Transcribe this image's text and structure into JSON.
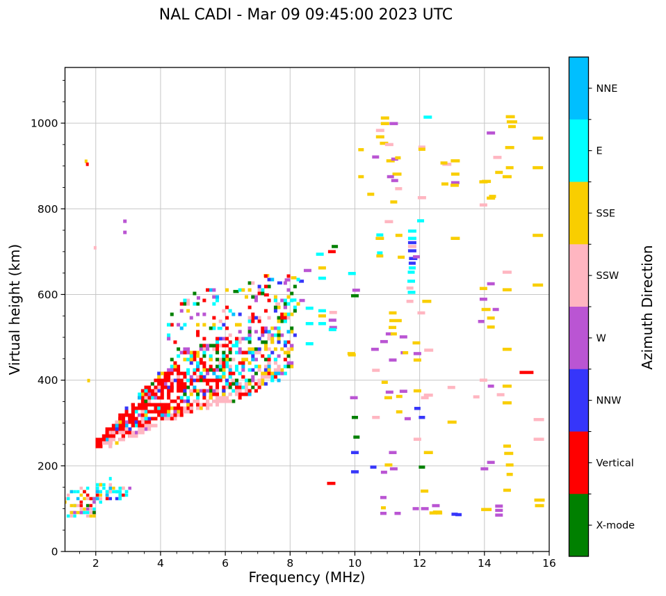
{
  "title": "NAL CADI - Mar 09 09:45:00 2023 UTC",
  "chart_data": {
    "type": "scatter",
    "title": "NAL CADI - Mar 09 09:45:00 2023 UTC",
    "xlabel": "Frequency (MHz)",
    "ylabel": "Virtual height (km)",
    "xlim": [
      1.05,
      16
    ],
    "ylim": [
      0,
      1130
    ],
    "x_ticks": [
      2,
      4,
      6,
      8,
      10,
      12,
      14,
      16
    ],
    "y_ticks": [
      0,
      200,
      400,
      600,
      800,
      1000
    ],
    "x_minor_step": 0.5,
    "y_minor_step": 50,
    "grid": true,
    "grid_color": "#c6c6c6",
    "axis_color": "#000000",
    "seed": 7,
    "colorbar": {
      "label": "Azimuth Direction",
      "categories": [
        {
          "name": "NNE",
          "color": "#00bfff"
        },
        {
          "name": "E",
          "color": "#00ffff"
        },
        {
          "name": "SSE",
          "color": "#f9ce00"
        },
        {
          "name": "SSW",
          "color": "#ffb6c1"
        },
        {
          "name": "W",
          "color": "#ba55d3"
        },
        {
          "name": "NNW",
          "color": "#3636fa"
        },
        {
          "name": "Vertical",
          "color": "#ff0000"
        },
        {
          "name": "X-mode",
          "color": "#008000"
        }
      ]
    },
    "points_format": [
      "freq_MHz",
      "virtual_height_km",
      "category_index",
      "dash_width_px"
    ],
    "points": [
      [
        1.7,
        911,
        2,
        4
      ],
      [
        1.74,
        904,
        6,
        4
      ],
      [
        2.9,
        771,
        4,
        5
      ],
      [
        2.9,
        745,
        4,
        5
      ],
      [
        1.98,
        709,
        3,
        4
      ],
      [
        1.78,
        399,
        2,
        4
      ],
      [
        2.45,
        170,
        1,
        4
      ],
      [
        5.17,
        592,
        4,
        5
      ],
      [
        5.83,
        521,
        1,
        7
      ],
      [
        6.33,
        607,
        7,
        8
      ],
      [
        7.27,
        599,
        6,
        7
      ],
      [
        7.62,
        578,
        3,
        7
      ],
      [
        7.27,
        644,
        2,
        8
      ],
      [
        7.92,
        634,
        4,
        8
      ],
      [
        8.11,
        639,
        2,
        8
      ],
      [
        7.68,
        627,
        5,
        7
      ],
      [
        8.35,
        631,
        5,
        7
      ],
      [
        8.11,
        587,
        1,
        8
      ],
      [
        8.37,
        586,
        4,
        8
      ],
      [
        8.54,
        656,
        4,
        11
      ],
      [
        8.99,
        662,
        2,
        11
      ],
      [
        9.91,
        649,
        1,
        11
      ],
      [
        8.99,
        638,
        1,
        11
      ],
      [
        8.92,
        694,
        1,
        11
      ],
      [
        9.29,
        700,
        6,
        11
      ],
      [
        9.38,
        712,
        7,
        9
      ],
      [
        8.6,
        568,
        1,
        11
      ],
      [
        8.99,
        562,
        1,
        11
      ],
      [
        9.33,
        558,
        3,
        11
      ],
      [
        8.99,
        550,
        2,
        11
      ],
      [
        9.31,
        540,
        4,
        11
      ],
      [
        8.6,
        532,
        1,
        11
      ],
      [
        8.99,
        532,
        1,
        11
      ],
      [
        9.33,
        523,
        4,
        11
      ],
      [
        9.31,
        518,
        1,
        11
      ],
      [
        8.6,
        485,
        1,
        11
      ],
      [
        9.91,
        459,
        2,
        11
      ],
      [
        9.27,
        159,
        6,
        12
      ],
      [
        10.19,
        938,
        2,
        8
      ],
      [
        10.19,
        875,
        2,
        8
      ],
      [
        10.49,
        834,
        2,
        10
      ],
      [
        10.93,
        1012,
        2,
        12
      ],
      [
        12.25,
        1014,
        1,
        12
      ],
      [
        10.93,
        999,
        2,
        12
      ],
      [
        11.2,
        999,
        4,
        12
      ],
      [
        10.78,
        983,
        3,
        12
      ],
      [
        10.78,
        968,
        2,
        12
      ],
      [
        10.9,
        953,
        2,
        12
      ],
      [
        11.06,
        950,
        3,
        12
      ],
      [
        10.64,
        921,
        4,
        10
      ],
      [
        11.1,
        912,
        2,
        12
      ],
      [
        11.23,
        916,
        4,
        10
      ],
      [
        11.33,
        919,
        2,
        8
      ],
      [
        12.07,
        944,
        3,
        10
      ],
      [
        12.07,
        939,
        2,
        10
      ],
      [
        12.84,
        904,
        3,
        13
      ],
      [
        13.1,
        912,
        2,
        13
      ],
      [
        12.75,
        907,
        2,
        10
      ],
      [
        11.3,
        881,
        2,
        13
      ],
      [
        11.1,
        875,
        4,
        10
      ],
      [
        13.1,
        881,
        2,
        12
      ],
      [
        11.23,
        866,
        4,
        10
      ],
      [
        13.1,
        861,
        4,
        12
      ],
      [
        13.08,
        855,
        2,
        12
      ],
      [
        12.78,
        858,
        2,
        10
      ],
      [
        14.06,
        864,
        2,
        13
      ],
      [
        11.35,
        847,
        3,
        10
      ],
      [
        11.2,
        816,
        2,
        10
      ],
      [
        12.07,
        826,
        3,
        12
      ],
      [
        14.25,
        829,
        2,
        10
      ],
      [
        11.05,
        770,
        3,
        12
      ],
      [
        12.03,
        772,
        1,
        10
      ],
      [
        11.77,
        748,
        1,
        12
      ],
      [
        11.36,
        738,
        2,
        10
      ],
      [
        10.77,
        739,
        1,
        10
      ],
      [
        10.77,
        731,
        2,
        12
      ],
      [
        13.1,
        731,
        2,
        13
      ],
      [
        11.77,
        731,
        1,
        12
      ],
      [
        11.77,
        721,
        5,
        12
      ],
      [
        11.77,
        712,
        3,
        12
      ],
      [
        11.77,
        702,
        5,
        12
      ],
      [
        10.77,
        697,
        1,
        8
      ],
      [
        10.77,
        690,
        2,
        10
      ],
      [
        11.43,
        687,
        2,
        10
      ],
      [
        11.8,
        684,
        5,
        12
      ],
      [
        11.9,
        688,
        4,
        10
      ],
      [
        11.77,
        673,
        5,
        10
      ],
      [
        11.77,
        662,
        1,
        10
      ],
      [
        11.74,
        652,
        1,
        10
      ],
      [
        11.74,
        631,
        1,
        11
      ],
      [
        11.7,
        615,
        3,
        10
      ],
      [
        11.75,
        605,
        1,
        11
      ],
      [
        11.7,
        584,
        3,
        10
      ],
      [
        12.22,
        584,
        2,
        13
      ],
      [
        10.04,
        610,
        4,
        11
      ],
      [
        10.0,
        597,
        7,
        11
      ],
      [
        11.17,
        557,
        2,
        11
      ],
      [
        12.05,
        557,
        3,
        11
      ],
      [
        11.16,
        539,
        2,
        9
      ],
      [
        11.35,
        539,
        2,
        9
      ],
      [
        11.16,
        523,
        2,
        11
      ],
      [
        11.05,
        508,
        4,
        9
      ],
      [
        11.2,
        508,
        2,
        9
      ],
      [
        11.5,
        501,
        4,
        11
      ],
      [
        10.9,
        490,
        4,
        11
      ],
      [
        10.62,
        472,
        4,
        11
      ],
      [
        11.9,
        487,
        2,
        11
      ],
      [
        9.89,
        462,
        2,
        11
      ],
      [
        11.5,
        464,
        4,
        8
      ],
      [
        11.56,
        464,
        2,
        8
      ],
      [
        11.93,
        462,
        4,
        11
      ],
      [
        12.28,
        470,
        3,
        13
      ],
      [
        11.17,
        447,
        4,
        11
      ],
      [
        11.93,
        447,
        2,
        11
      ],
      [
        10.65,
        423,
        3,
        11
      ],
      [
        10.92,
        395,
        2,
        9
      ],
      [
        11.07,
        372,
        4,
        11
      ],
      [
        11.5,
        374,
        4,
        11
      ],
      [
        11.93,
        375,
        2,
        11
      ],
      [
        9.97,
        359,
        4,
        11
      ],
      [
        11.03,
        359,
        2,
        11
      ],
      [
        11.37,
        362,
        2,
        9
      ],
      [
        12.27,
        365,
        3,
        13
      ],
      [
        11.93,
        334,
        5,
        9
      ],
      [
        11.37,
        326,
        2,
        9
      ],
      [
        10.0,
        313,
        7,
        9
      ],
      [
        10.65,
        313,
        3,
        11
      ],
      [
        11.63,
        310,
        4,
        9
      ],
      [
        12.07,
        313,
        5,
        9
      ],
      [
        10.05,
        267,
        7,
        9
      ],
      [
        11.93,
        262,
        3,
        11
      ],
      [
        10.0,
        231,
        5,
        11
      ],
      [
        11.17,
        231,
        4,
        11
      ],
      [
        12.27,
        231,
        2,
        13
      ],
      [
        10.0,
        186,
        5,
        11
      ],
      [
        10.57,
        197,
        5,
        9
      ],
      [
        11.2,
        193,
        4,
        11
      ],
      [
        10.9,
        185,
        4,
        9
      ],
      [
        12.07,
        197,
        7,
        9
      ],
      [
        11.04,
        202,
        2,
        11
      ],
      [
        10.88,
        126,
        4,
        9
      ],
      [
        10.88,
        102,
        2,
        7
      ],
      [
        10.88,
        89,
        4,
        9
      ],
      [
        11.32,
        89,
        4,
        9
      ],
      [
        11.88,
        100,
        4,
        9
      ],
      [
        12.16,
        100,
        4,
        11
      ],
      [
        12.15,
        141,
        2,
        11
      ],
      [
        12.55,
        92,
        2,
        13
      ],
      [
        12.5,
        107,
        4,
        11
      ],
      [
        13.08,
        87,
        5,
        9
      ],
      [
        13.2,
        86,
        5,
        9
      ],
      [
        12.42,
        90,
        2,
        11
      ],
      [
        12.6,
        90,
        2,
        9
      ],
      [
        12.98,
        383,
        3,
        11
      ],
      [
        12.16,
        359,
        3,
        11
      ],
      [
        13.0,
        302,
        2,
        13
      ],
      [
        14.8,
        1015,
        2,
        13
      ],
      [
        14.85,
        1003,
        2,
        15
      ],
      [
        14.85,
        992,
        2,
        11
      ],
      [
        14.2,
        977,
        4,
        12
      ],
      [
        15.65,
        965,
        2,
        15
      ],
      [
        14.78,
        943,
        2,
        13
      ],
      [
        14.4,
        920,
        3,
        12
      ],
      [
        15.65,
        896,
        2,
        15
      ],
      [
        14.45,
        885,
        2,
        11
      ],
      [
        14.78,
        896,
        2,
        11
      ],
      [
        14.7,
        875,
        2,
        13
      ],
      [
        13.97,
        863,
        2,
        12
      ],
      [
        14.2,
        825,
        2,
        12
      ],
      [
        13.97,
        809,
        3,
        11
      ],
      [
        15.65,
        738,
        2,
        15
      ],
      [
        14.2,
        625,
        4,
        11
      ],
      [
        13.97,
        614,
        2,
        11
      ],
      [
        14.7,
        611,
        2,
        13
      ],
      [
        14.7,
        652,
        3,
        13
      ],
      [
        15.65,
        622,
        2,
        15
      ],
      [
        13.97,
        589,
        4,
        11
      ],
      [
        14.05,
        565,
        2,
        13
      ],
      [
        14.35,
        565,
        4,
        9
      ],
      [
        14.2,
        545,
        2,
        11
      ],
      [
        13.9,
        537,
        4,
        9
      ],
      [
        14.2,
        524,
        2,
        11
      ],
      [
        14.7,
        472,
        2,
        13
      ],
      [
        15.3,
        418,
        6,
        20
      ],
      [
        13.97,
        400,
        3,
        11
      ],
      [
        14.2,
        386,
        4,
        9
      ],
      [
        14.7,
        386,
        2,
        13
      ],
      [
        14.5,
        366,
        3,
        11
      ],
      [
        13.75,
        361,
        3,
        9
      ],
      [
        14.7,
        347,
        2,
        13
      ],
      [
        15.68,
        308,
        3,
        15
      ],
      [
        15.68,
        262,
        3,
        15
      ],
      [
        14.06,
        98,
        2,
        15
      ],
      [
        14.45,
        106,
        4,
        11
      ],
      [
        14.45,
        96,
        4,
        11
      ],
      [
        14.45,
        85,
        4,
        11
      ],
      [
        15.7,
        120,
        2,
        15
      ],
      [
        15.7,
        107,
        2,
        13
      ],
      [
        14.7,
        246,
        2,
        11
      ],
      [
        14.75,
        229,
        2,
        13
      ],
      [
        14.78,
        202,
        2,
        11
      ],
      [
        14.78,
        180,
        2,
        9
      ],
      [
        14.7,
        143,
        2,
        11
      ],
      [
        14.2,
        208,
        4,
        11
      ],
      [
        14.0,
        193,
        4,
        11
      ]
    ],
    "clusters": [
      {
        "name": "f-trace-lower",
        "count": 430,
        "f": [
          2.02,
          4.7
        ],
        "size": 5,
        "band": [
          [
            2.02,
            243,
            258
          ],
          [
            2.5,
            252,
            295
          ],
          [
            3.0,
            268,
            335
          ],
          [
            3.5,
            288,
            378
          ],
          [
            4.0,
            303,
            418
          ],
          [
            4.7,
            318,
            448
          ]
        ],
        "weights": [
          5,
          7,
          3,
          9,
          5,
          4,
          66,
          1
        ]
      },
      {
        "name": "f-trace-mid",
        "count": 270,
        "f": [
          4.7,
          6.7
        ],
        "size": 5,
        "band": [
          [
            4.7,
            325,
            465
          ],
          [
            5.5,
            340,
            485
          ],
          [
            6.0,
            350,
            505
          ],
          [
            6.7,
            362,
            520
          ]
        ],
        "weights": [
          3,
          11,
          10,
          11,
          10,
          4,
          38,
          13
        ]
      },
      {
        "name": "f-trace-upper",
        "count": 180,
        "f": [
          6.7,
          8.15
        ],
        "size": 5,
        "band": [
          [
            6.7,
            365,
            525
          ],
          [
            7.2,
            380,
            550
          ],
          [
            7.7,
            405,
            585
          ],
          [
            8.15,
            430,
            625
          ]
        ],
        "weights": [
          6,
          11,
          26,
          13,
          13,
          8,
          9,
          14
        ]
      },
      {
        "name": "f-trace-underside",
        "count": 115,
        "f": [
          2.1,
          7.7
        ],
        "size": 5,
        "band": [
          [
            2.1,
            240,
            252
          ],
          [
            3.0,
            262,
            275
          ],
          [
            4.0,
            298,
            312
          ],
          [
            5.0,
            325,
            340
          ],
          [
            6.0,
            348,
            364
          ],
          [
            7.0,
            378,
            398
          ],
          [
            7.7,
            408,
            432
          ]
        ],
        "weights": [
          0,
          2,
          2,
          78,
          2,
          0,
          16,
          0
        ]
      },
      {
        "name": "above-band-scatter",
        "count": 115,
        "f": [
          4.2,
          8.3
        ],
        "size": 5,
        "band": [
          [
            4.2,
            420,
            560
          ],
          [
            5.0,
            450,
            600
          ],
          [
            6.0,
            495,
            625
          ],
          [
            7.0,
            530,
            645
          ],
          [
            8.3,
            560,
            650
          ]
        ],
        "weights": [
          4,
          12,
          14,
          8,
          17,
          6,
          24,
          15
        ]
      },
      {
        "name": "sporadic-e-left",
        "count": 60,
        "f": [
          1.06,
          2.0
        ],
        "size": 4.5,
        "band": [
          [
            1.06,
            80,
            148
          ],
          [
            2.0,
            82,
            150
          ]
        ],
        "weights": [
          12,
          30,
          20,
          10,
          7,
          6,
          12,
          3
        ]
      },
      {
        "name": "sporadic-e-main",
        "count": 52,
        "f": [
          2.0,
          3.05
        ],
        "size": 4.5,
        "band": [
          [
            2.0,
            115,
            158
          ],
          [
            2.6,
            120,
            155
          ],
          [
            3.05,
            128,
            150
          ]
        ],
        "weights": [
          14,
          48,
          6,
          9,
          3,
          8,
          12,
          0
        ]
      }
    ]
  }
}
